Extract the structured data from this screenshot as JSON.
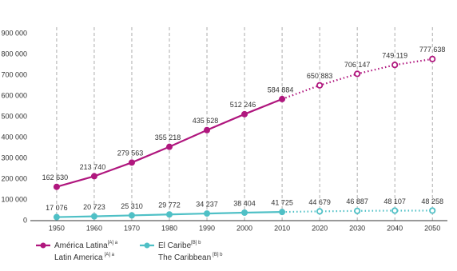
{
  "chart_data": {
    "type": "line",
    "x": [
      1950,
      1960,
      1970,
      1980,
      1990,
      2000,
      2010,
      2020,
      2030,
      2040,
      2050
    ],
    "xlim": [
      1943,
      2054
    ],
    "xticks": [
      1950,
      1960,
      1970,
      1980,
      1990,
      2000,
      2010,
      2020,
      2030,
      2040,
      2050
    ],
    "ylim": [
      0,
      900000
    ],
    "yticks": [
      0,
      {
        "value": 100000,
        "label": "100 000"
      },
      {
        "value": 200000,
        "label": "200 000"
      },
      {
        "value": 300000,
        "label": "300 000"
      },
      {
        "value": 400000,
        "label": "400 000"
      },
      {
        "value": 500000,
        "label": "500 000"
      },
      {
        "value": 600000,
        "label": "600 000"
      },
      {
        "value": 700000,
        "label": "700 000"
      },
      {
        "value": 800000,
        "label": "800 000"
      },
      {
        "value": 900000,
        "label": "900 000"
      }
    ],
    "projection_from": 2010,
    "grid": "x",
    "series": [
      {
        "name": "América Latina",
        "name_en": "Latin America",
        "note": "[A] a",
        "color": "#b0177e",
        "values": [
          162630,
          213740,
          279563,
          355218,
          435628,
          512246,
          584884,
          650883,
          706147,
          749119,
          777638
        ],
        "value_labels": [
          "162 630",
          "213 740",
          "279 563",
          "355 218",
          "435 628",
          "512 246",
          "584 884",
          "650 883",
          "706 147",
          "749 119",
          "777 638"
        ]
      },
      {
        "name": "El Caribe",
        "name_en": "The Caribbean",
        "note": "[B] b",
        "color": "#4fc0c6",
        "values": [
          17076,
          20723,
          25310,
          29772,
          34237,
          38404,
          41725,
          44679,
          46887,
          48107,
          48258
        ],
        "value_labels": [
          "17 076",
          "20 723",
          "25 310",
          "29 772",
          "34 237",
          "38 404",
          "41 725",
          "44 679",
          "46 887",
          "48 107",
          "48 258"
        ]
      }
    ]
  }
}
